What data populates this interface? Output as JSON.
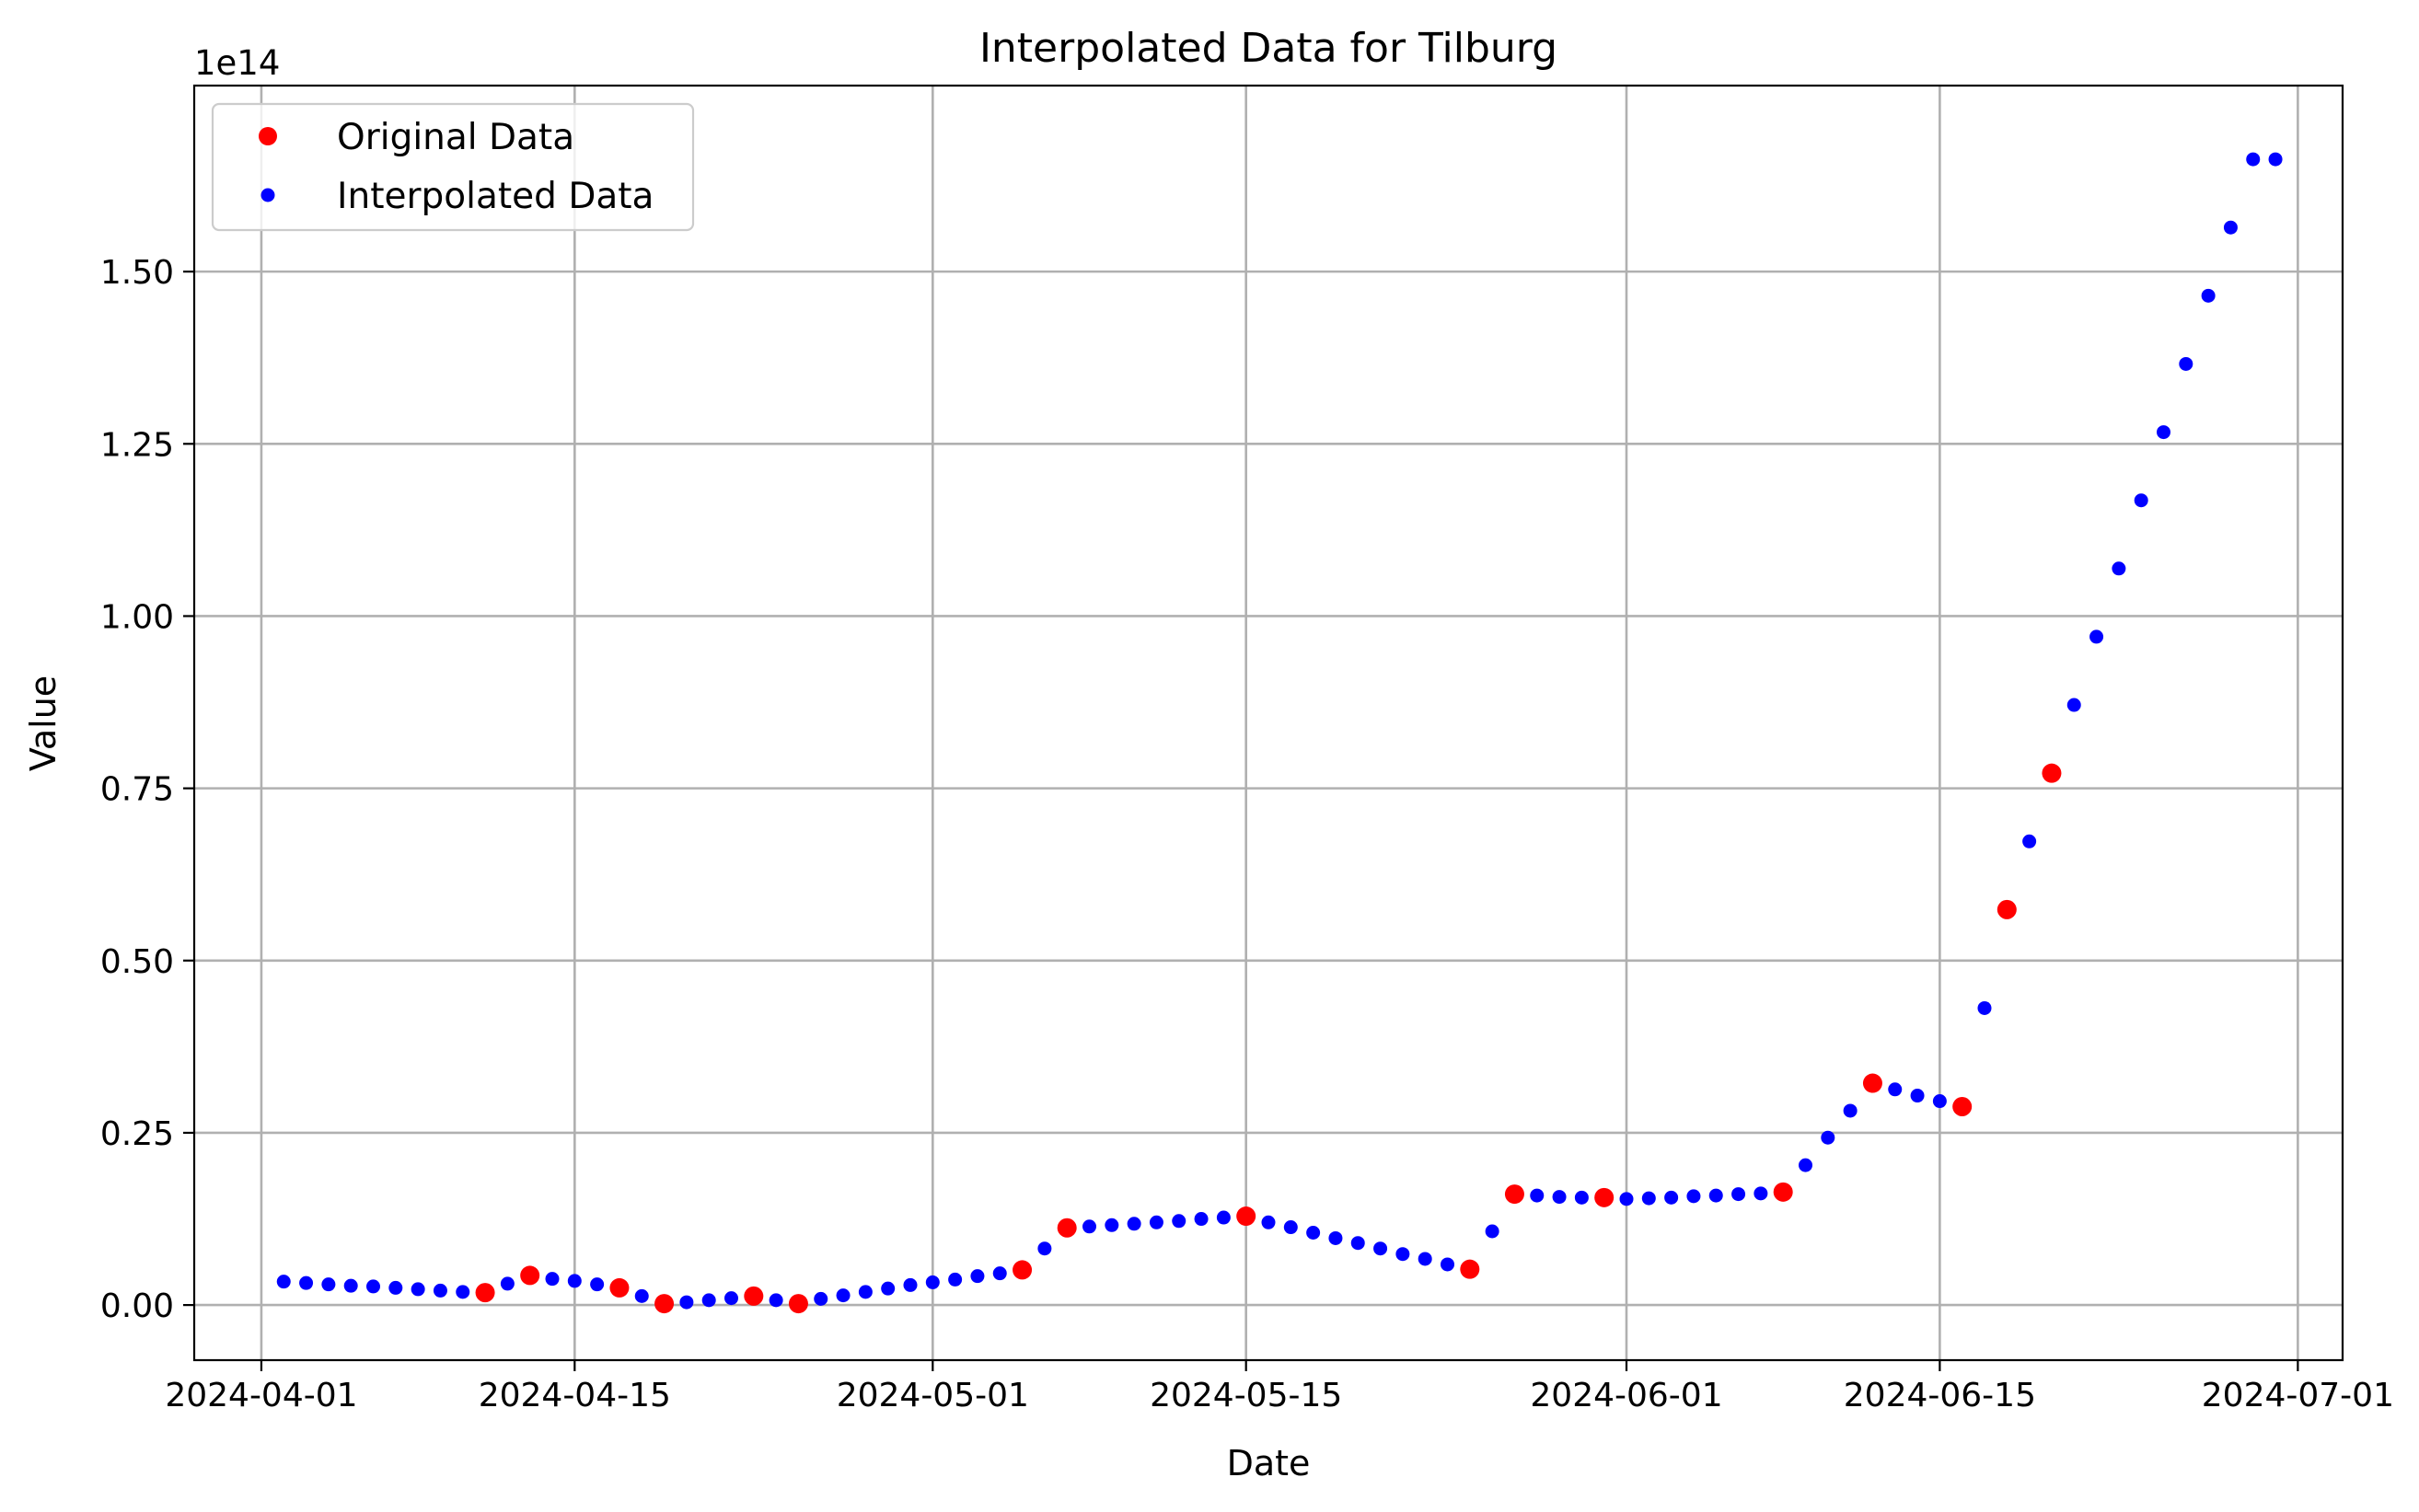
{
  "chart_data": {
    "type": "scatter",
    "title": "Interpolated Data for Tilburg",
    "xlabel": "Date",
    "ylabel": "Value",
    "y_offset_label": "1e14",
    "y_scale": 100000000000000.0,
    "xlim": [
      "2024-03-29",
      "2024-07-03"
    ],
    "ylim": [
      -0.08,
      1.77
    ],
    "x_ticks": [
      "2024-04-01",
      "2024-04-15",
      "2024-05-01",
      "2024-05-15",
      "2024-06-01",
      "2024-06-15",
      "2024-07-01"
    ],
    "y_ticks": [
      0.0,
      0.25,
      0.5,
      0.75,
      1.0,
      1.25,
      1.5
    ],
    "y_tick_labels": [
      "0.00",
      "0.25",
      "0.50",
      "0.75",
      "1.00",
      "1.25",
      "1.50"
    ],
    "grid": true,
    "legend_position": "top-left",
    "series": [
      {
        "name": "Original Data",
        "color": "#ff0000",
        "marker": "large-dot",
        "x": [
          "2024-04-11",
          "2024-04-13",
          "2024-04-17",
          "2024-04-19",
          "2024-04-23",
          "2024-04-25",
          "2024-05-05",
          "2024-05-07",
          "2024-05-15",
          "2024-05-25",
          "2024-05-27",
          "2024-05-31",
          "2024-06-08",
          "2024-06-12",
          "2024-06-16",
          "2024-06-18",
          "2024-06-20"
        ],
        "y": [
          0.018,
          0.043,
          0.025,
          0.002,
          0.013,
          0.002,
          0.051,
          0.112,
          0.129,
          0.052,
          0.161,
          0.156,
          0.164,
          0.322,
          0.288,
          0.574,
          0.772
        ]
      },
      {
        "name": "Interpolated Data",
        "color": "#0000ff",
        "marker": "small-dot",
        "x": [
          "2024-04-02",
          "2024-04-03",
          "2024-04-04",
          "2024-04-05",
          "2024-04-06",
          "2024-04-07",
          "2024-04-08",
          "2024-04-09",
          "2024-04-10",
          "2024-04-12",
          "2024-04-14",
          "2024-04-15",
          "2024-04-16",
          "2024-04-18",
          "2024-04-20",
          "2024-04-21",
          "2024-04-22",
          "2024-04-24",
          "2024-04-26",
          "2024-04-27",
          "2024-04-28",
          "2024-04-29",
          "2024-04-30",
          "2024-05-01",
          "2024-05-02",
          "2024-05-03",
          "2024-05-04",
          "2024-05-06",
          "2024-05-08",
          "2024-05-09",
          "2024-05-10",
          "2024-05-11",
          "2024-05-12",
          "2024-05-13",
          "2024-05-14",
          "2024-05-16",
          "2024-05-17",
          "2024-05-18",
          "2024-05-19",
          "2024-05-20",
          "2024-05-21",
          "2024-05-22",
          "2024-05-23",
          "2024-05-24",
          "2024-05-26",
          "2024-05-28",
          "2024-05-29",
          "2024-05-30",
          "2024-06-01",
          "2024-06-02",
          "2024-06-03",
          "2024-06-04",
          "2024-06-05",
          "2024-06-06",
          "2024-06-07",
          "2024-06-09",
          "2024-06-10",
          "2024-06-11",
          "2024-06-13",
          "2024-06-14",
          "2024-06-15",
          "2024-06-17",
          "2024-06-19",
          "2024-06-21",
          "2024-06-22",
          "2024-06-23",
          "2024-06-24",
          "2024-06-25",
          "2024-06-26",
          "2024-06-27",
          "2024-06-28",
          "2024-06-29",
          "2024-06-30"
        ],
        "y": [
          0.034,
          0.032,
          0.03,
          0.028,
          0.027,
          0.025,
          0.023,
          0.021,
          0.019,
          0.031,
          0.038,
          0.035,
          0.03,
          0.013,
          0.004,
          0.007,
          0.01,
          0.007,
          0.009,
          0.014,
          0.019,
          0.024,
          0.029,
          0.033,
          0.037,
          0.042,
          0.046,
          0.082,
          0.114,
          0.116,
          0.118,
          0.12,
          0.122,
          0.125,
          0.127,
          0.12,
          0.113,
          0.105,
          0.097,
          0.09,
          0.082,
          0.074,
          0.067,
          0.059,
          0.107,
          0.159,
          0.157,
          0.156,
          0.154,
          0.155,
          0.156,
          0.158,
          0.159,
          0.161,
          0.162,
          0.203,
          0.243,
          0.282,
          0.313,
          0.304,
          0.296,
          0.431,
          0.673,
          0.871,
          0.97,
          1.069,
          1.168,
          1.267,
          1.366,
          1.465,
          1.564,
          1.663,
          1.663
        ]
      }
    ]
  }
}
